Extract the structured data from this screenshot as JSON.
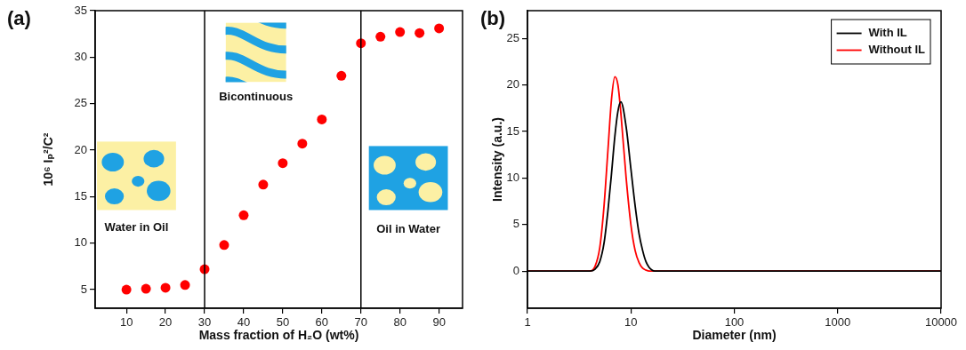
{
  "chart_data": [
    {
      "type": "scatter",
      "title": "(a)",
      "x_label": "Mass fraction of H₂O (wt%)",
      "y_label": "10⁶ Iₚ²/C²",
      "x": [
        10,
        15,
        20,
        25,
        30,
        35,
        40,
        45,
        50,
        55,
        60,
        65,
        70,
        75,
        80,
        85,
        90
      ],
      "values": [
        5.0,
        5.1,
        5.2,
        5.5,
        7.2,
        9.8,
        13.0,
        16.3,
        18.6,
        20.7,
        23.3,
        28.0,
        31.5,
        32.2,
        32.7,
        32.6,
        33.1
      ],
      "color": "#ff0000",
      "marker": "circle",
      "xlim": [
        2,
        96
      ],
      "xticks": [
        10,
        20,
        30,
        40,
        50,
        60,
        70,
        80,
        90
      ],
      "ylim": [
        3,
        35
      ],
      "yticks": [
        5,
        10,
        15,
        20,
        25,
        30,
        35
      ],
      "vlines": [
        30,
        70
      ],
      "annotations": [
        "Water in Oil",
        "Bicontinuous",
        "Oil in Water"
      ],
      "grid": false
    },
    {
      "type": "line",
      "title": "(b)",
      "x_label": "Diameter (nm)",
      "y_label": "Intensity (a.u.)",
      "x": [
        1,
        2,
        3,
        4,
        4.5,
        5,
        5.5,
        6,
        6.5,
        7,
        7.5,
        8,
        9,
        10,
        11,
        12,
        13,
        14,
        15,
        16,
        17,
        20,
        50,
        100,
        1000,
        10000
      ],
      "series": [
        {
          "name": "With IL",
          "color": "#000000",
          "values": [
            0,
            0,
            0,
            0,
            0.2,
            1,
            3,
            6.5,
            10.5,
            14.5,
            17.2,
            18.2,
            15.5,
            11,
            7,
            4,
            2.2,
            1,
            0.4,
            0.1,
            0,
            0,
            0,
            0,
            0,
            0
          ]
        },
        {
          "name": "Without IL",
          "color": "#ff0000",
          "values": [
            0,
            0,
            0,
            0,
            0.5,
            2.5,
            7,
            13,
            18.5,
            20.9,
            20,
            17,
            10,
            5,
            2.2,
            0.9,
            0.3,
            0.1,
            0,
            0,
            0,
            0,
            0,
            0,
            0,
            0
          ]
        }
      ],
      "log": "x",
      "xlim": [
        1,
        10000
      ],
      "xticks": [
        1,
        10,
        100,
        1000,
        10000
      ],
      "ylim": [
        -4,
        28
      ],
      "yticks": [
        0,
        5,
        10,
        15,
        20,
        25
      ],
      "legend": "upper right",
      "grid": false
    }
  ]
}
